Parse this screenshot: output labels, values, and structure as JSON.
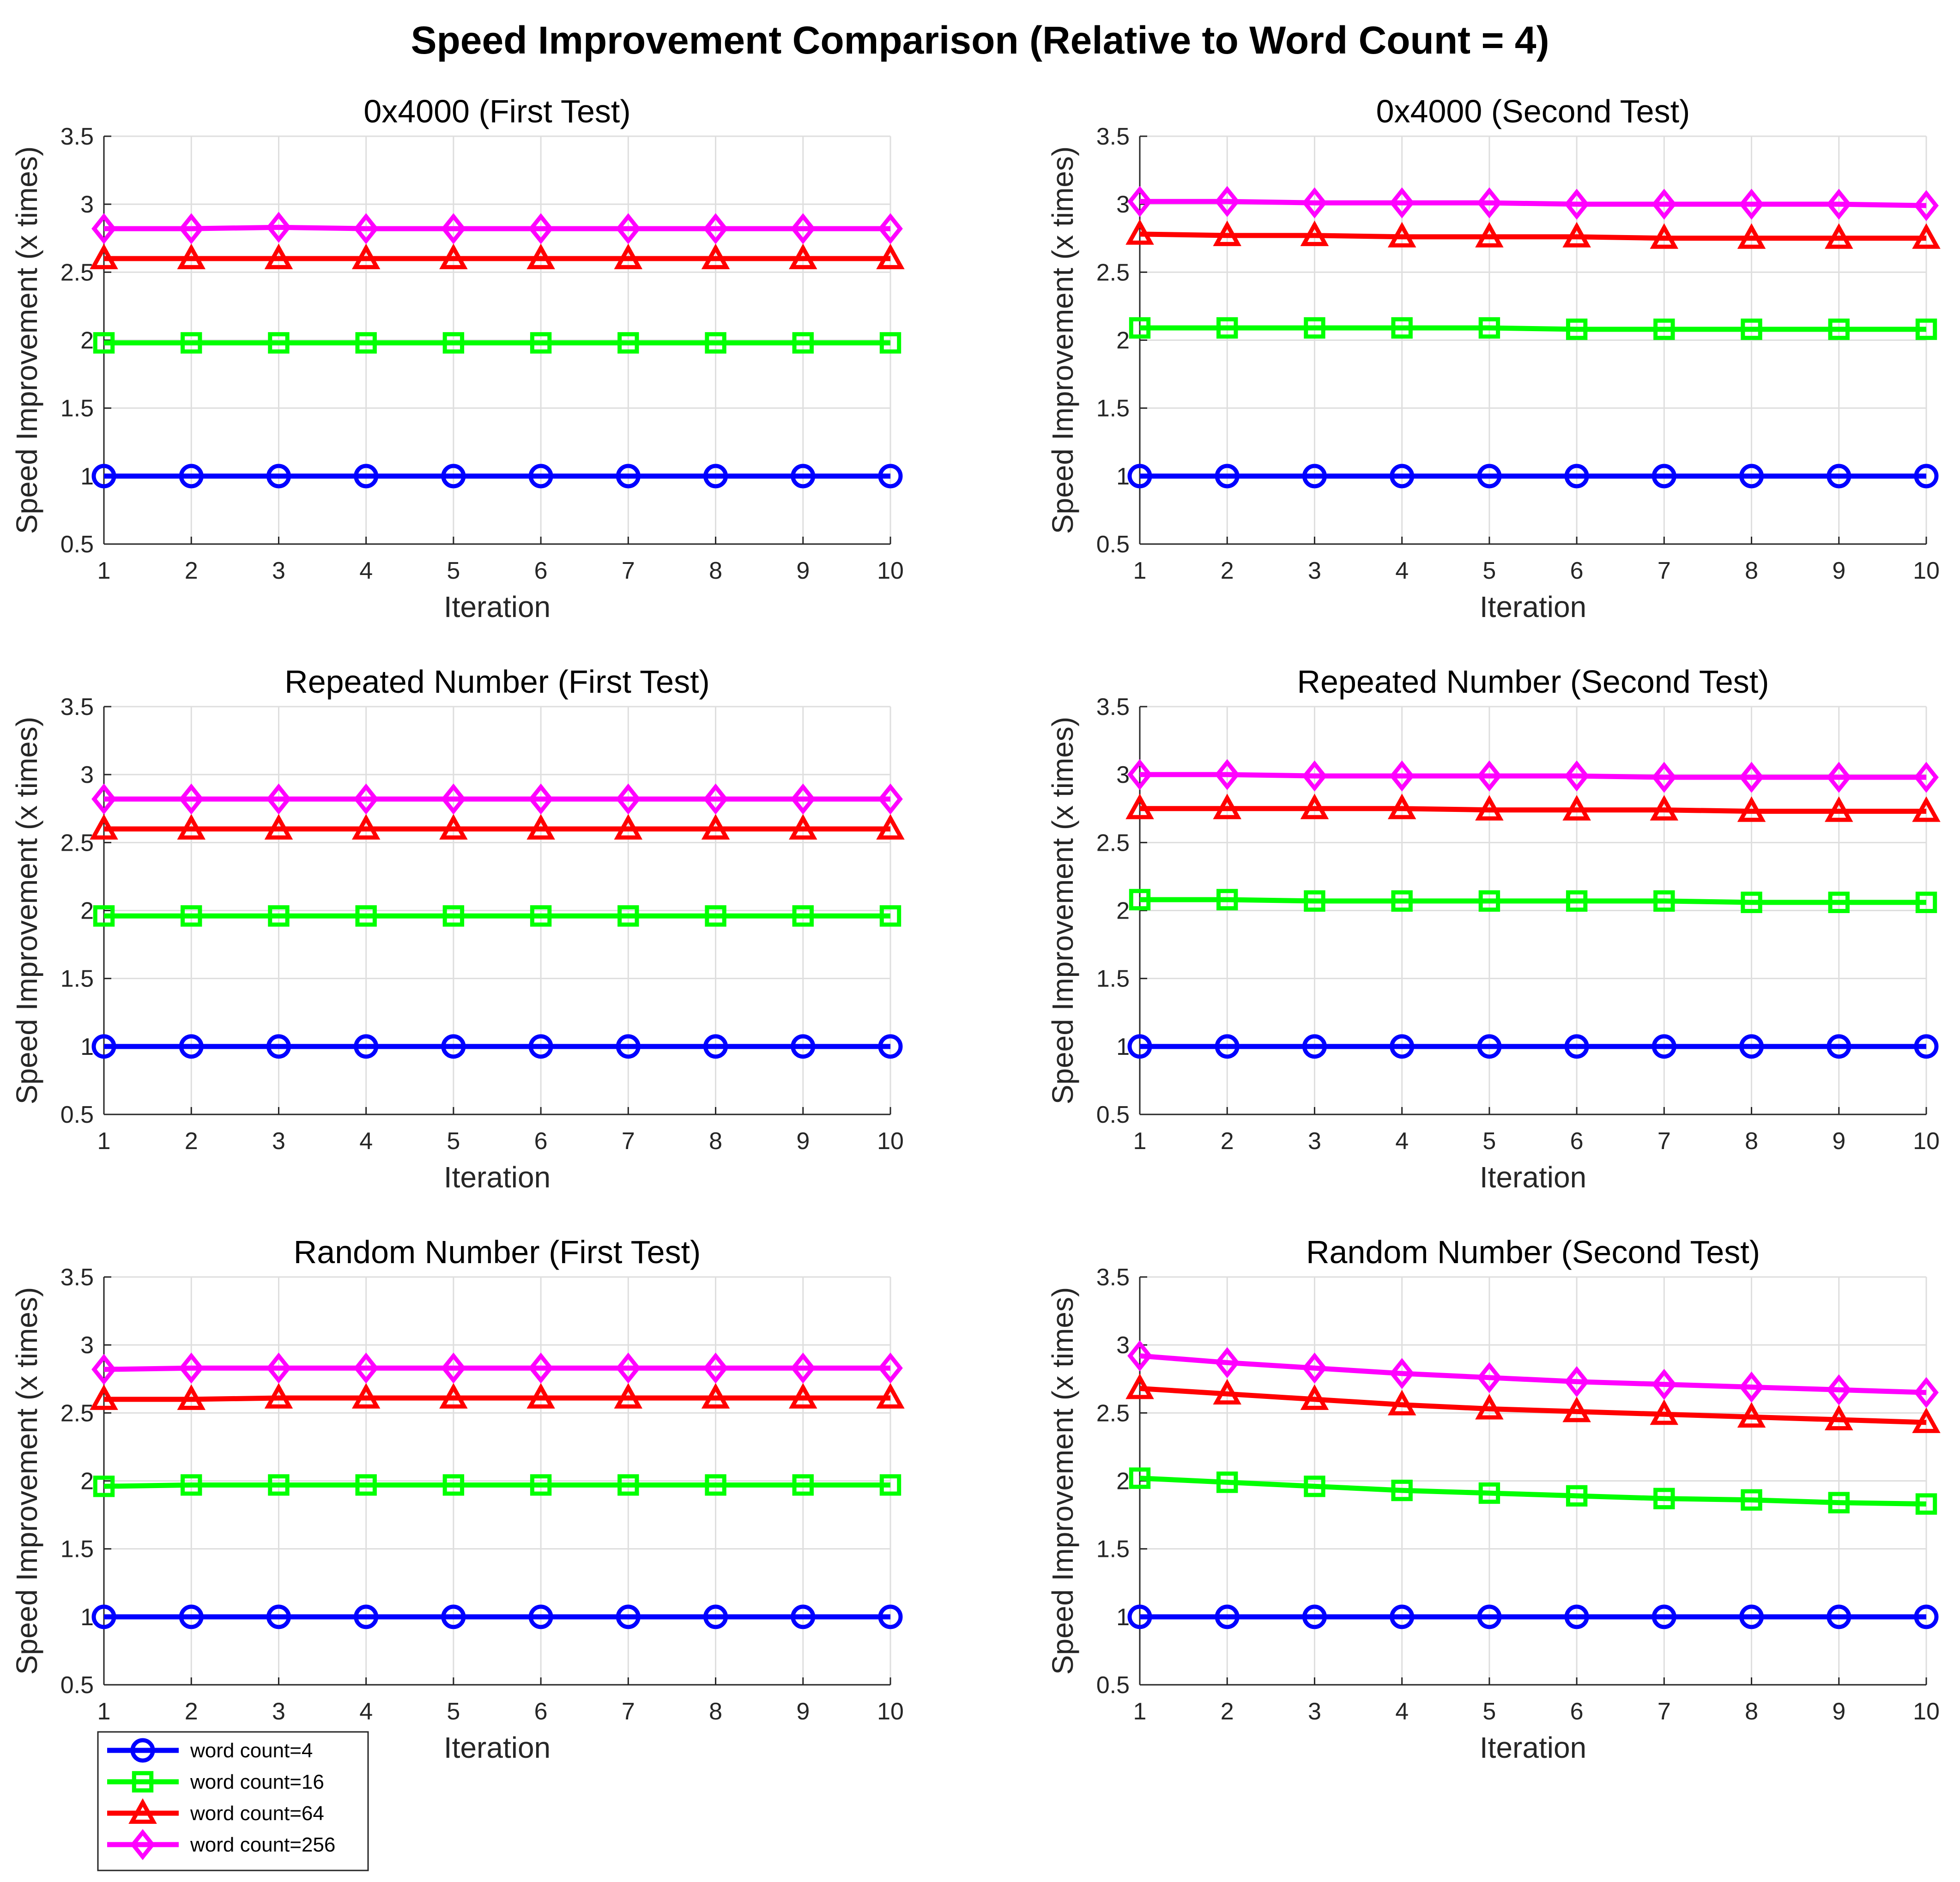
{
  "figure_title": "Speed Improvement Comparison (Relative to Word Count = 4)",
  "colors": {
    "word_count_4": "#0000ff",
    "word_count_16": "#00ff00",
    "word_count_64": "#ff0000",
    "word_count_256": "#ff00ff"
  },
  "legend": {
    "placement": "bottom-left",
    "entries": [
      {
        "label": "word count=4",
        "color": "#0000ff",
        "marker": "circle"
      },
      {
        "label": "word count=16",
        "color": "#00ff00",
        "marker": "square"
      },
      {
        "label": "word count=64",
        "color": "#ff0000",
        "marker": "triangle"
      },
      {
        "label": "word count=256",
        "color": "#ff00ff",
        "marker": "diamond"
      }
    ]
  },
  "chart_data": [
    {
      "type": "line",
      "title": "0x4000 (First Test)",
      "xlabel": "Iteration",
      "ylabel": "Speed Improvement (x times)",
      "x": [
        1,
        2,
        3,
        4,
        5,
        6,
        7,
        8,
        9,
        10
      ],
      "xticks": [
        "1",
        "2",
        "3",
        "4",
        "5",
        "6",
        "7",
        "8",
        "9",
        "10"
      ],
      "yticks": [
        "0.5",
        "1",
        "1.5",
        "2",
        "2.5",
        "3",
        "3.5"
      ],
      "xlim": [
        1,
        10
      ],
      "ylim": [
        0.5,
        3.5
      ],
      "grid": true,
      "series": [
        {
          "name": "word count=4",
          "color": "#0000ff",
          "marker": "circle",
          "values": [
            1,
            1,
            1,
            1,
            1,
            1,
            1,
            1,
            1,
            1
          ]
        },
        {
          "name": "word count=16",
          "color": "#00ff00",
          "marker": "square",
          "values": [
            1.98,
            1.98,
            1.98,
            1.98,
            1.98,
            1.98,
            1.98,
            1.98,
            1.98,
            1.98
          ]
        },
        {
          "name": "word count=64",
          "color": "#ff0000",
          "marker": "triangle",
          "values": [
            2.6,
            2.6,
            2.6,
            2.6,
            2.6,
            2.6,
            2.6,
            2.6,
            2.6,
            2.6
          ]
        },
        {
          "name": "word count=256",
          "color": "#ff00ff",
          "marker": "diamond",
          "values": [
            2.82,
            2.82,
            2.83,
            2.82,
            2.82,
            2.82,
            2.82,
            2.82,
            2.82,
            2.82
          ]
        }
      ]
    },
    {
      "type": "line",
      "title": "0x4000 (Second Test)",
      "xlabel": "Iteration",
      "ylabel": "Speed Improvement (x times)",
      "x": [
        1,
        2,
        3,
        4,
        5,
        6,
        7,
        8,
        9,
        10
      ],
      "xticks": [
        "1",
        "2",
        "3",
        "4",
        "5",
        "6",
        "7",
        "8",
        "9",
        "10"
      ],
      "yticks": [
        "0.5",
        "1",
        "1.5",
        "2",
        "2.5",
        "3",
        "3.5"
      ],
      "xlim": [
        1,
        10
      ],
      "ylim": [
        0.5,
        3.5
      ],
      "grid": true,
      "series": [
        {
          "name": "word count=4",
          "color": "#0000ff",
          "marker": "circle",
          "values": [
            1,
            1,
            1,
            1,
            1,
            1,
            1,
            1,
            1,
            1
          ]
        },
        {
          "name": "word count=16",
          "color": "#00ff00",
          "marker": "square",
          "values": [
            2.09,
            2.09,
            2.09,
            2.09,
            2.09,
            2.08,
            2.08,
            2.08,
            2.08,
            2.08
          ]
        },
        {
          "name": "word count=64",
          "color": "#ff0000",
          "marker": "triangle",
          "values": [
            2.78,
            2.77,
            2.77,
            2.76,
            2.76,
            2.76,
            2.75,
            2.75,
            2.75,
            2.75
          ]
        },
        {
          "name": "word count=256",
          "color": "#ff00ff",
          "marker": "diamond",
          "values": [
            3.02,
            3.02,
            3.01,
            3.01,
            3.01,
            3.0,
            3.0,
            3.0,
            3.0,
            2.99
          ]
        }
      ]
    },
    {
      "type": "line",
      "title": "Repeated Number (First Test)",
      "xlabel": "Iteration",
      "ylabel": "Speed Improvement (x times)",
      "x": [
        1,
        2,
        3,
        4,
        5,
        6,
        7,
        8,
        9,
        10
      ],
      "xticks": [
        "1",
        "2",
        "3",
        "4",
        "5",
        "6",
        "7",
        "8",
        "9",
        "10"
      ],
      "yticks": [
        "0.5",
        "1",
        "1.5",
        "2",
        "2.5",
        "3",
        "3.5"
      ],
      "xlim": [
        1,
        10
      ],
      "ylim": [
        0.5,
        3.5
      ],
      "grid": true,
      "series": [
        {
          "name": "word count=4",
          "color": "#0000ff",
          "marker": "circle",
          "values": [
            1,
            1,
            1,
            1,
            1,
            1,
            1,
            1,
            1,
            1
          ]
        },
        {
          "name": "word count=16",
          "color": "#00ff00",
          "marker": "square",
          "values": [
            1.96,
            1.96,
            1.96,
            1.96,
            1.96,
            1.96,
            1.96,
            1.96,
            1.96,
            1.96
          ]
        },
        {
          "name": "word count=64",
          "color": "#ff0000",
          "marker": "triangle",
          "values": [
            2.6,
            2.6,
            2.6,
            2.6,
            2.6,
            2.6,
            2.6,
            2.6,
            2.6,
            2.6
          ]
        },
        {
          "name": "word count=256",
          "color": "#ff00ff",
          "marker": "diamond",
          "values": [
            2.82,
            2.82,
            2.82,
            2.82,
            2.82,
            2.82,
            2.82,
            2.82,
            2.82,
            2.82
          ]
        }
      ]
    },
    {
      "type": "line",
      "title": "Repeated Number (Second Test)",
      "xlabel": "Iteration",
      "ylabel": "Speed Improvement (x times)",
      "x": [
        1,
        2,
        3,
        4,
        5,
        6,
        7,
        8,
        9,
        10
      ],
      "xticks": [
        "1",
        "2",
        "3",
        "4",
        "5",
        "6",
        "7",
        "8",
        "9",
        "10"
      ],
      "yticks": [
        "0.5",
        "1",
        "1.5",
        "2",
        "2.5",
        "3",
        "3.5"
      ],
      "xlim": [
        1,
        10
      ],
      "ylim": [
        0.5,
        3.5
      ],
      "grid": true,
      "series": [
        {
          "name": "word count=4",
          "color": "#0000ff",
          "marker": "circle",
          "values": [
            1,
            1,
            1,
            1,
            1,
            1,
            1,
            1,
            1,
            1
          ]
        },
        {
          "name": "word count=16",
          "color": "#00ff00",
          "marker": "square",
          "values": [
            2.08,
            2.08,
            2.07,
            2.07,
            2.07,
            2.07,
            2.07,
            2.06,
            2.06,
            2.06
          ]
        },
        {
          "name": "word count=64",
          "color": "#ff0000",
          "marker": "triangle",
          "values": [
            2.75,
            2.75,
            2.75,
            2.75,
            2.74,
            2.74,
            2.74,
            2.73,
            2.73,
            2.73
          ]
        },
        {
          "name": "word count=256",
          "color": "#ff00ff",
          "marker": "diamond",
          "values": [
            3.0,
            3.0,
            2.99,
            2.99,
            2.99,
            2.99,
            2.98,
            2.98,
            2.98,
            2.98
          ]
        }
      ]
    },
    {
      "type": "line",
      "title": "Random Number (First Test)",
      "xlabel": "Iteration",
      "ylabel": "Speed Improvement (x times)",
      "x": [
        1,
        2,
        3,
        4,
        5,
        6,
        7,
        8,
        9,
        10
      ],
      "xticks": [
        "1",
        "2",
        "3",
        "4",
        "5",
        "6",
        "7",
        "8",
        "9",
        "10"
      ],
      "yticks": [
        "0.5",
        "1",
        "1.5",
        "2",
        "2.5",
        "3",
        "3.5"
      ],
      "xlim": [
        1,
        10
      ],
      "ylim": [
        0.5,
        3.5
      ],
      "grid": true,
      "series": [
        {
          "name": "word count=4",
          "color": "#0000ff",
          "marker": "circle",
          "values": [
            1,
            1,
            1,
            1,
            1,
            1,
            1,
            1,
            1,
            1
          ]
        },
        {
          "name": "word count=16",
          "color": "#00ff00",
          "marker": "square",
          "values": [
            1.96,
            1.97,
            1.97,
            1.97,
            1.97,
            1.97,
            1.97,
            1.97,
            1.97,
            1.97
          ]
        },
        {
          "name": "word count=64",
          "color": "#ff0000",
          "marker": "triangle",
          "values": [
            2.6,
            2.6,
            2.61,
            2.61,
            2.61,
            2.61,
            2.61,
            2.61,
            2.61,
            2.61
          ]
        },
        {
          "name": "word count=256",
          "color": "#ff00ff",
          "marker": "diamond",
          "values": [
            2.82,
            2.83,
            2.83,
            2.83,
            2.83,
            2.83,
            2.83,
            2.83,
            2.83,
            2.83
          ]
        }
      ]
    },
    {
      "type": "line",
      "title": "Random Number (Second Test)",
      "xlabel": "Iteration",
      "ylabel": "Speed Improvement (x times)",
      "x": [
        1,
        2,
        3,
        4,
        5,
        6,
        7,
        8,
        9,
        10
      ],
      "xticks": [
        "1",
        "2",
        "3",
        "4",
        "5",
        "6",
        "7",
        "8",
        "9",
        "10"
      ],
      "yticks": [
        "0.5",
        "1",
        "1.5",
        "2",
        "2.5",
        "3",
        "3.5"
      ],
      "xlim": [
        1,
        10
      ],
      "ylim": [
        0.5,
        3.5
      ],
      "grid": true,
      "series": [
        {
          "name": "word count=4",
          "color": "#0000ff",
          "marker": "circle",
          "values": [
            1,
            1,
            1,
            1,
            1,
            1,
            1,
            1,
            1,
            1
          ]
        },
        {
          "name": "word count=16",
          "color": "#00ff00",
          "marker": "square",
          "values": [
            2.02,
            1.99,
            1.96,
            1.93,
            1.91,
            1.89,
            1.87,
            1.86,
            1.84,
            1.83
          ]
        },
        {
          "name": "word count=64",
          "color": "#ff0000",
          "marker": "triangle",
          "values": [
            2.68,
            2.64,
            2.6,
            2.56,
            2.53,
            2.51,
            2.49,
            2.47,
            2.45,
            2.43
          ]
        },
        {
          "name": "word count=256",
          "color": "#ff00ff",
          "marker": "diamond",
          "values": [
            2.92,
            2.87,
            2.83,
            2.79,
            2.76,
            2.73,
            2.71,
            2.69,
            2.67,
            2.65
          ]
        }
      ]
    }
  ]
}
